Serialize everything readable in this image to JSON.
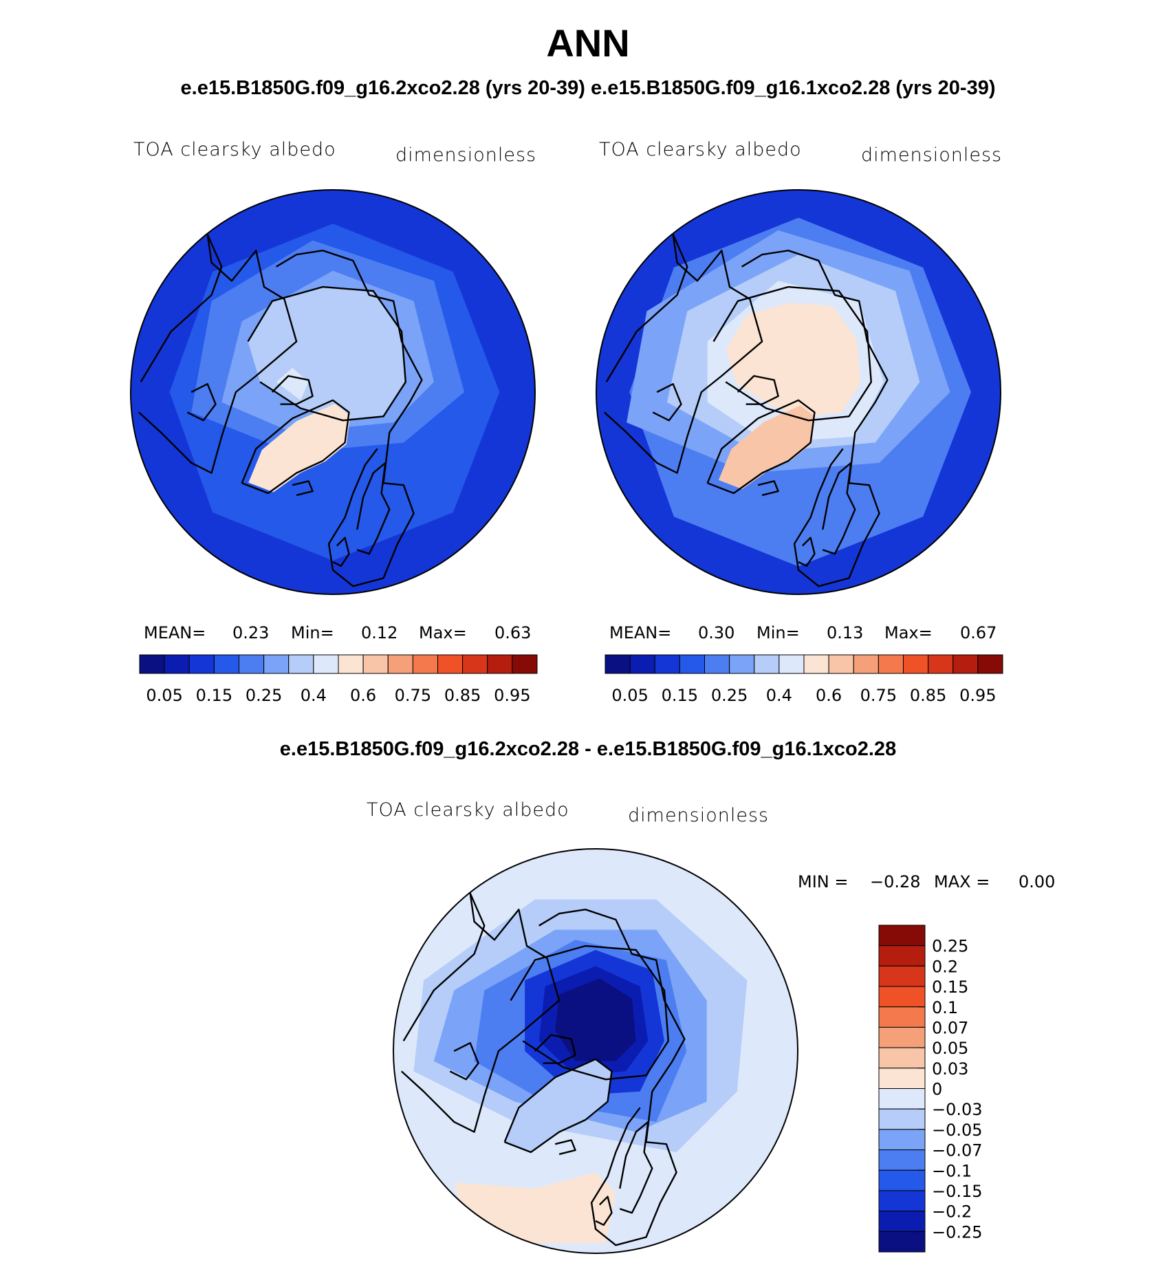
{
  "title": "ANN",
  "case_title": "e.e15.B1850G.f09_g16.2xco2.28 (yrs 20-39) e.e15.B1850G.f09_g16.1xco2.28 (yrs 20-39)",
  "diff_title": "e.e15.B1850G.f09_g16.2xco2.28 - e.e15.B1850G.f09_g16.1xco2.28",
  "colors": {
    "land_outline": "#000000",
    "abs_scale": [
      "#0a0f82",
      "#0b1db0",
      "#1536d6",
      "#2459ea",
      "#4c7ef2",
      "#7ba3f7",
      "#b5cdf8",
      "#dde9fb",
      "#fbe4d3",
      "#f9c5a8",
      "#f6a07a",
      "#f47a4d",
      "#ef5226",
      "#d8361a",
      "#b51d0f",
      "#860a05"
    ],
    "diff_scale": [
      "#0a0f82",
      "#0b1db0",
      "#1536d6",
      "#2459ea",
      "#4c7ef2",
      "#7ba3f7",
      "#b5cdf8",
      "#dde9fb",
      "#fbe4d3",
      "#f9c5a8",
      "#f6a07a",
      "#f47a4d",
      "#ef5226",
      "#d8361a",
      "#b51d0f",
      "#860a05"
    ]
  },
  "chart_data": [
    {
      "type": "heatmap",
      "projection": "north polar stereographic",
      "case": "e.e15.B1850G.f09_g16.2xco2.28 (yrs 20-39)",
      "variable": "TOA clearsky albedo",
      "units": "dimensionless",
      "stats": {
        "mean_label": "MEAN=",
        "mean": "0.23",
        "min_label": "Min=",
        "min": "0.12",
        "max_label": "Max=",
        "max": "0.63"
      },
      "levels": [
        "0.05",
        "0.1",
        "0.15",
        "0.2",
        "0.25",
        "0.3",
        "0.4",
        "0.5",
        "0.6",
        "0.7",
        "0.75",
        "0.8",
        "0.85",
        "0.9",
        "0.95"
      ],
      "tick_labels": [
        "0.05",
        "0.15",
        "0.25",
        "0.4",
        "0.6",
        "0.75",
        "0.85",
        "0.95"
      ]
    },
    {
      "type": "heatmap",
      "projection": "north polar stereographic",
      "case": "e.e15.B1850G.f09_g16.1xco2.28 (yrs 20-39)",
      "variable": "TOA clearsky albedo",
      "units": "dimensionless",
      "stats": {
        "mean_label": "MEAN=",
        "mean": "0.30",
        "min_label": "Min=",
        "min": "0.13",
        "max_label": "Max=",
        "max": "0.67"
      },
      "levels": [
        "0.05",
        "0.1",
        "0.15",
        "0.2",
        "0.25",
        "0.3",
        "0.4",
        "0.5",
        "0.6",
        "0.7",
        "0.75",
        "0.8",
        "0.85",
        "0.9",
        "0.95"
      ],
      "tick_labels": [
        "0.05",
        "0.15",
        "0.25",
        "0.4",
        "0.6",
        "0.75",
        "0.85",
        "0.95"
      ]
    },
    {
      "type": "heatmap",
      "projection": "north polar stereographic",
      "case": "e.e15.B1850G.f09_g16.2xco2.28 - e.e15.B1850G.f09_g16.1xco2.28",
      "variable": "TOA clearsky albedo",
      "units": "dimensionless",
      "stats": {
        "min_label": "MIN =",
        "min": "−0.28",
        "max_label": "MAX =",
        "max": "0.00"
      },
      "levels": [
        "−0.25",
        "−0.2",
        "−0.15",
        "−0.1",
        "−0.07",
        "−0.05",
        "−0.03",
        "0",
        "0.03",
        "0.05",
        "0.07",
        "0.1",
        "0.15",
        "0.2",
        "0.25"
      ],
      "tick_labels": [
        "−0.25",
        "−0.2",
        "−0.15",
        "−0.1",
        "−0.07",
        "−0.05",
        "−0.03",
        "0",
        "0.03",
        "0.05",
        "0.07",
        "0.1",
        "0.15",
        "0.2",
        "0.25"
      ]
    }
  ]
}
